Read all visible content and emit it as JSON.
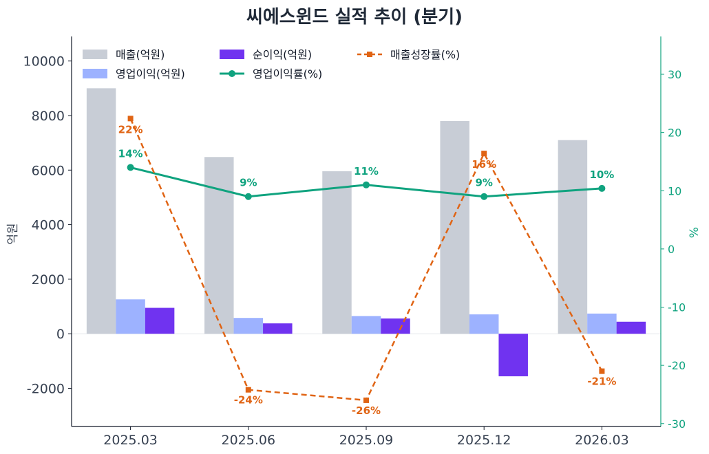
{
  "chart_data": {
    "type": "bar",
    "title": "씨에스윈드 실적 추이 (분기)",
    "categories": [
      "2025.03",
      "2025.06",
      "2025.09",
      "2025.12",
      "2026.03"
    ],
    "ylabel": "억원",
    "y2label": "%",
    "ylim": [
      -3400,
      10900
    ],
    "y2lim": [
      -30.5,
      36.5
    ],
    "yticks": [
      -2000,
      0,
      2000,
      4000,
      6000,
      8000,
      10000
    ],
    "y2ticks": [
      -30,
      -20,
      -10,
      0,
      10,
      20,
      30
    ],
    "grid": false,
    "legend_position": "top-left",
    "series": [
      {
        "name": "매출(억원)",
        "type": "bar",
        "axis": "left",
        "color": "#c8cdd6",
        "values": [
          9000,
          6480,
          5960,
          7800,
          7100
        ]
      },
      {
        "name": "영업이익(억원)",
        "type": "bar",
        "axis": "left",
        "color": "#9db2ff",
        "values": [
          1260,
          580,
          650,
          710,
          740
        ]
      },
      {
        "name": "순이익(억원)",
        "type": "bar",
        "axis": "left",
        "color": "#7033f0",
        "values": [
          950,
          380,
          560,
          -1560,
          440
        ]
      },
      {
        "name": "영업이익률(%)",
        "type": "line",
        "axis": "right",
        "color": "#10a37f",
        "style": "solid",
        "marker": "circle",
        "values": [
          14,
          9,
          11,
          9,
          10.4
        ],
        "labels": [
          "14%",
          "9%",
          "11%",
          "9%",
          "10%"
        ]
      },
      {
        "name": "매출성장률(%)",
        "type": "line",
        "axis": "right",
        "color": "#e06414",
        "style": "dashed",
        "marker": "square",
        "values": [
          22.4,
          -24.2,
          -26,
          16.4,
          -21
        ],
        "labels": [
          "22%",
          "-24%",
          "-26%",
          "16%",
          "-21%"
        ]
      }
    ]
  }
}
